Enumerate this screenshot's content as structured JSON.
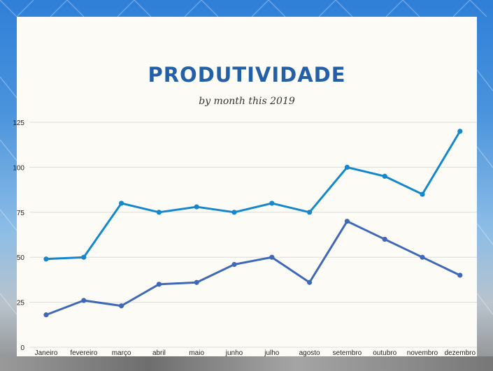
{
  "title": "PRODUTIVIDADE",
  "subtitle": "by month this 2019",
  "chart_data": {
    "type": "line",
    "title": "PRODUTIVIDADE",
    "subtitle": "by month this 2019",
    "categories": [
      "Janeiro",
      "fevereiro",
      "março",
      "abril",
      "maio",
      "junho",
      "julho",
      "agosto",
      "setembro",
      "outubro",
      "novembro",
      "dezembro"
    ],
    "series": [
      {
        "color": "#1388cc",
        "values": [
          49,
          50,
          80,
          75,
          78,
          75,
          80,
          75,
          100,
          95,
          85,
          120
        ]
      },
      {
        "color": "#3f68b8",
        "values": [
          18,
          26,
          23,
          35,
          36,
          46,
          50,
          36,
          70,
          60,
          50,
          40
        ]
      }
    ],
    "yticks": [
      0,
      25,
      50,
      75,
      100,
      125
    ],
    "ylim": [
      0,
      125
    ],
    "grid": true,
    "legend": "none"
  }
}
